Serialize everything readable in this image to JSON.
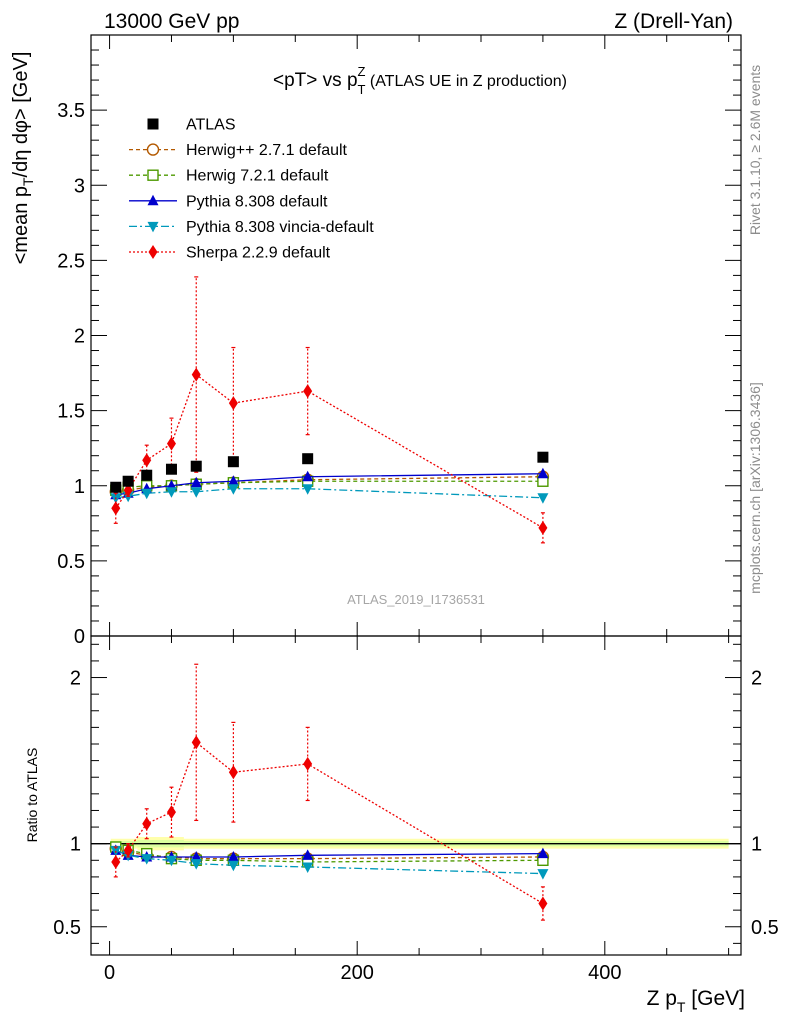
{
  "header": {
    "left": "13000 GeV pp",
    "right": "Z (Drell-Yan)"
  },
  "side_text": {
    "rivet": "Rivet 3.1.10, ≥ 2.6M events",
    "mcplots": "mcplots.cern.ch [arXiv:1306.3436]"
  },
  "chart_data": {
    "type": "line",
    "title": "<pT> vs pTZ (ATLAS UE in Z production)",
    "title_parts": {
      "main": "<pT> vs p",
      "sup": "Z",
      "sub": "T",
      "rest": " (ATLAS UE in Z production)"
    },
    "watermark": "ATLAS_2019_I1736531",
    "xlabel_parts": {
      "main": "Z p",
      "sub": "T",
      "rest": " [GeV]"
    },
    "ylabel_parts": {
      "a": "<mean p",
      "b": "T",
      "c": "/dη dφ> [GeV]"
    },
    "ratio_ylabel": "Ratio to ATLAS",
    "xlim": [
      -15,
      510
    ],
    "ylim_main": [
      0,
      4.0
    ],
    "ylim_ratio": [
      0.33,
      2.25
    ],
    "x_ticks": [
      0,
      200,
      400
    ],
    "x_tick_labels": [
      "0",
      "200",
      "400"
    ],
    "y_ticks_main": [
      0,
      0.5,
      1,
      1.5,
      2,
      2.5,
      3,
      3.5
    ],
    "y_tick_labels_main": [
      "0",
      "0.5",
      "1",
      "1.5",
      "2",
      "2.5",
      "3",
      "3.5"
    ],
    "y_ticks_ratio": [
      0.5,
      1,
      2
    ],
    "y_tick_labels_ratio": [
      "0.5",
      "1",
      "2"
    ],
    "legend_position": "top-left",
    "x": [
      5,
      15,
      30,
      50,
      70,
      100,
      160,
      350
    ],
    "data": {
      "name": "ATLAS",
      "values": [
        0.99,
        1.03,
        1.07,
        1.11,
        1.13,
        1.16,
        1.18,
        1.19
      ],
      "ratio_band": [
        0.03,
        0.03,
        0.04,
        0.04,
        0.03,
        0.03,
        0.03,
        0.03
      ]
    },
    "series": [
      {
        "name": "Herwig++ 2.7.1 default",
        "color": "#b35900",
        "dash": "4,3",
        "marker": "circle-open",
        "values": [
          0.96,
          0.97,
          0.99,
          1.0,
          1.01,
          1.02,
          1.04,
          1.06
        ],
        "ratio": [
          0.97,
          0.95,
          0.93,
          0.92,
          0.91,
          0.91,
          0.91,
          0.92
        ],
        "err": [],
        "ratio_err": []
      },
      {
        "name": "Herwig 7.2.1 default",
        "color": "#4d9900",
        "dash": "4,3",
        "marker": "square-open",
        "values": [
          0.97,
          0.99,
          1.0,
          1.0,
          1.01,
          1.02,
          1.03,
          1.03
        ],
        "ratio": [
          0.98,
          0.96,
          0.94,
          0.91,
          0.9,
          0.9,
          0.89,
          0.9
        ],
        "err": [],
        "ratio_err": []
      },
      {
        "name": "Pythia 8.308 default",
        "color": "#0000cc",
        "dash": "",
        "marker": "triangle-up",
        "values": [
          0.94,
          0.95,
          0.98,
          1.0,
          1.02,
          1.03,
          1.06,
          1.08
        ],
        "ratio": [
          0.96,
          0.93,
          0.92,
          0.92,
          0.92,
          0.92,
          0.93,
          0.94
        ],
        "err": [],
        "ratio_err": []
      },
      {
        "name": "Pythia 8.308 vincia-default",
        "color": "#0099bb",
        "dash": "8,3,2,3",
        "marker": "triangle-down",
        "values": [
          0.92,
          0.93,
          0.95,
          0.96,
          0.96,
          0.98,
          0.98,
          0.92
        ],
        "ratio": [
          0.96,
          0.93,
          0.91,
          0.9,
          0.88,
          0.87,
          0.86,
          0.82
        ],
        "err": [],
        "ratio_err": []
      },
      {
        "name": "Sherpa 2.2.9 default",
        "color": "#ee0000",
        "dash": "2,2",
        "marker": "diamond",
        "values": [
          0.85,
          0.97,
          1.17,
          1.28,
          1.74,
          1.55,
          1.63,
          0.72
        ],
        "err": [
          0.1,
          0.04,
          0.1,
          0.17,
          0.65,
          0.37,
          0.29,
          0.1
        ],
        "ratio": [
          0.89,
          0.96,
          1.12,
          1.19,
          1.61,
          1.43,
          1.48,
          0.64
        ],
        "ratio_err": [
          0.09,
          0.04,
          0.09,
          0.15,
          0.47,
          0.3,
          0.22,
          0.1
        ]
      }
    ]
  }
}
